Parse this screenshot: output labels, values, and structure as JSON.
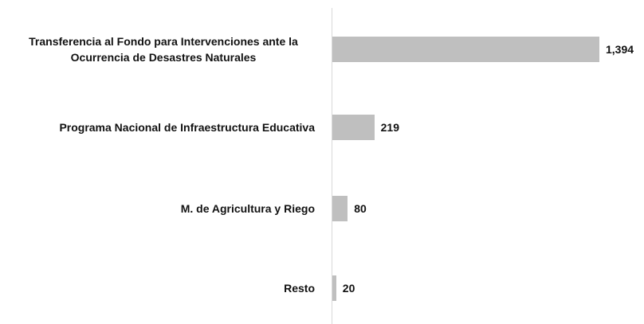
{
  "chart_data": {
    "type": "barh",
    "categories": [
      "Transferencia al Fondo para Intervenciones ante la Ocurrencia de Desastres Naturales",
      "Programa Nacional de Infraestructura Educativa",
      "M. de Agricultura y Riego",
      "Resto"
    ],
    "values": [
      1394,
      219,
      80,
      20
    ],
    "value_labels": [
      "1,394",
      "219",
      "80",
      "20"
    ],
    "color": "#bfbfbf",
    "xlim": [
      0,
      1394
    ]
  }
}
